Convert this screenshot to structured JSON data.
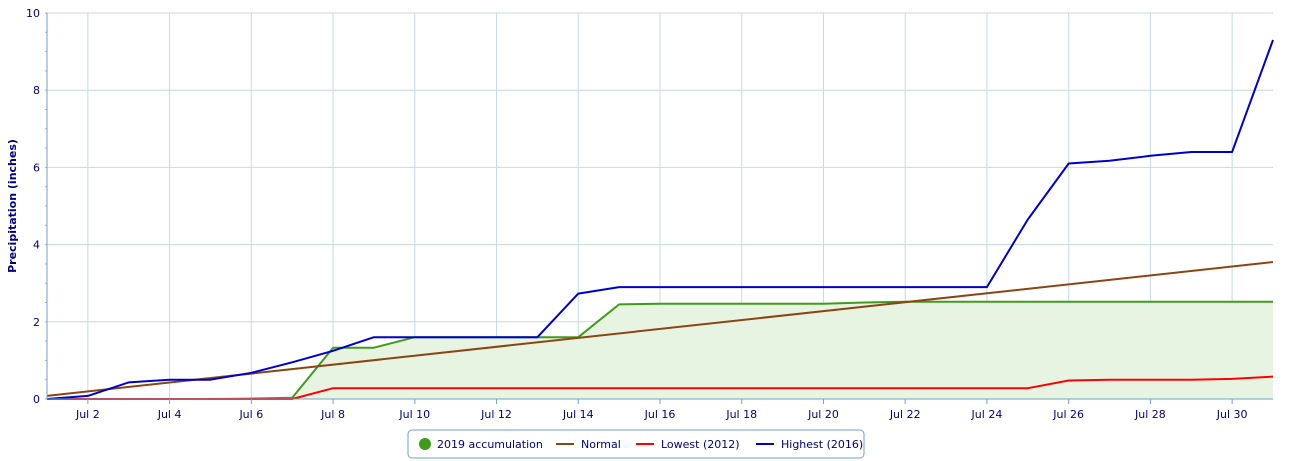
{
  "chart_data": {
    "type": "line",
    "ylabel": "Precipitation (inches)",
    "ylim": [
      0,
      10
    ],
    "y_ticks": [
      "0",
      "2",
      "4",
      "6",
      "8",
      "10"
    ],
    "x_tick_labels": [
      "Jul 2",
      "Jul 4",
      "Jul 6",
      "Jul 8",
      "Jul 10",
      "Jul 12",
      "Jul 14",
      "Jul 16",
      "Jul 18",
      "Jul 20",
      "Jul 22",
      "Jul 24",
      "Jul 26",
      "Jul 28",
      "Jul 30"
    ],
    "x_days": [
      1,
      31
    ],
    "grid": true,
    "legend_position": "bottom-center",
    "series": [
      {
        "name": "2019 accumulation",
        "color": "#3f9b1a",
        "fill": "#e8f4e2",
        "marker": "circle",
        "x": [
          1,
          2,
          3,
          4,
          5,
          6,
          7,
          8,
          9,
          10,
          11,
          12,
          13,
          14,
          15,
          16,
          17,
          18,
          19,
          20,
          21,
          22,
          23,
          24,
          25,
          26,
          27,
          28,
          29,
          30,
          31
        ],
        "values": [
          0,
          0,
          0,
          0,
          0,
          0.01,
          0.03,
          1.33,
          1.33,
          1.6,
          1.6,
          1.6,
          1.6,
          1.6,
          2.45,
          2.47,
          2.47,
          2.47,
          2.47,
          2.47,
          2.5,
          2.52,
          2.52,
          2.52,
          2.52,
          2.52,
          2.52,
          2.52,
          2.52,
          2.52,
          2.52
        ]
      },
      {
        "name": "Normal",
        "color": "#8b4513",
        "x": [
          1,
          31
        ],
        "values": [
          0.08,
          3.55
        ]
      },
      {
        "name": "Lowest (2012)",
        "color": "#ff0000",
        "x": [
          1,
          2,
          3,
          4,
          5,
          6,
          7,
          8,
          9,
          10,
          11,
          12,
          13,
          14,
          15,
          16,
          17,
          18,
          19,
          20,
          21,
          22,
          23,
          24,
          25,
          26,
          27,
          28,
          29,
          30,
          31
        ],
        "values": [
          0,
          0,
          0,
          0,
          0,
          0,
          0,
          0.28,
          0.28,
          0.28,
          0.28,
          0.28,
          0.28,
          0.28,
          0.28,
          0.28,
          0.28,
          0.28,
          0.28,
          0.28,
          0.28,
          0.28,
          0.28,
          0.28,
          0.28,
          0.48,
          0.5,
          0.5,
          0.5,
          0.52,
          0.58
        ]
      },
      {
        "name": "Highest (2016)",
        "color": "#0000cc",
        "x": [
          1,
          2,
          3,
          4,
          5,
          6,
          7,
          8,
          9,
          10,
          11,
          12,
          13,
          14,
          15,
          16,
          17,
          18,
          19,
          20,
          21,
          22,
          23,
          24,
          25,
          26,
          27,
          28,
          29,
          30,
          31
        ],
        "values": [
          0,
          0.08,
          0.43,
          0.5,
          0.5,
          0.68,
          0.95,
          1.25,
          1.6,
          1.6,
          1.6,
          1.6,
          1.6,
          2.73,
          2.9,
          2.9,
          2.9,
          2.9,
          2.9,
          2.9,
          2.9,
          2.9,
          2.9,
          2.9,
          4.65,
          6.1,
          6.17,
          6.3,
          6.4,
          6.4,
          9.3
        ]
      }
    ]
  }
}
